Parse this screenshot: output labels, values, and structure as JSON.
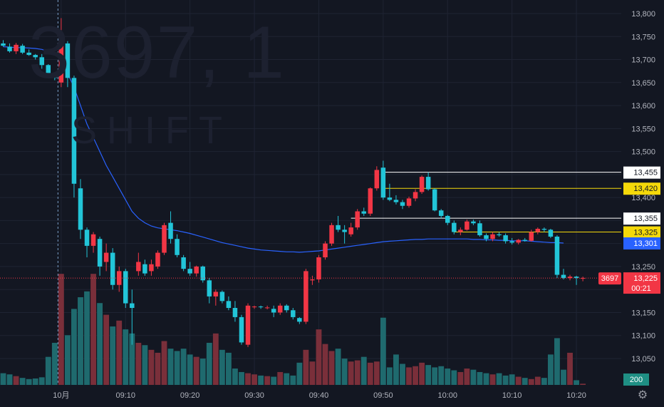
{
  "watermark": {
    "symbol": "3697, 1",
    "name": "SHIFT"
  },
  "colors": {
    "background": "#131722",
    "grid": "#1f2433",
    "up": "#f23645",
    "down": "#22c5d8",
    "vol_up": "#7a2f3a",
    "vol_down": "#1f6a6e",
    "ma": "#2962ff",
    "axis_text": "#b2b5be",
    "price_line": "#f23645"
  },
  "chart_data": {
    "type": "candlestick",
    "price_range": [
      13050,
      13800
    ],
    "y_ticks": [
      "13,800",
      "13,750",
      "13,700",
      "13,650",
      "13,600",
      "13,550",
      "13,500",
      "13,450",
      "13,400",
      "13,350",
      "13,300",
      "13,250",
      "13,200",
      "13,150",
      "13,100",
      "13,050"
    ],
    "y_tick_values": [
      13800,
      13750,
      13700,
      13650,
      13600,
      13550,
      13500,
      13450,
      13400,
      13350,
      13300,
      13250,
      13200,
      13150,
      13100,
      13050
    ],
    "x_ticks": [
      {
        "label": "10月",
        "bar": 9
      },
      {
        "label": "09:10",
        "bar": 19
      },
      {
        "label": "09:20",
        "bar": 29
      },
      {
        "label": "09:30",
        "bar": 39
      },
      {
        "label": "09:40",
        "bar": 49
      },
      {
        "label": "09:50",
        "bar": 59
      },
      {
        "label": "10:00",
        "bar": 69
      },
      {
        "label": "10:10",
        "bar": 79
      },
      {
        "label": "10:20",
        "bar": 89
      }
    ],
    "session_break_bar": 9,
    "candles": [
      [
        13735,
        13742,
        13728,
        13730
      ],
      [
        13728,
        13735,
        13715,
        13718
      ],
      [
        13718,
        13736,
        13712,
        13732
      ],
      [
        13730,
        13734,
        13712,
        13715
      ],
      [
        13715,
        13722,
        13708,
        13710
      ],
      [
        13710,
        13712,
        13700,
        13705
      ],
      [
        13705,
        13712,
        13680,
        13688
      ],
      [
        13688,
        13690,
        13660,
        13665
      ],
      [
        13665,
        13672,
        13655,
        13660
      ],
      [
        13650,
        13790,
        13640,
        13750
      ],
      [
        13735,
        13740,
        13640,
        13660
      ],
      [
        13660,
        13665,
        13400,
        13430
      ],
      [
        13420,
        13440,
        13310,
        13330
      ],
      [
        13330,
        13335,
        13270,
        13295
      ],
      [
        13295,
        13325,
        13280,
        13320
      ],
      [
        13310,
        13315,
        13230,
        13250
      ],
      [
        13260,
        13300,
        13240,
        13280
      ],
      [
        13280,
        13290,
        13200,
        13210
      ],
      [
        13210,
        13250,
        13195,
        13240
      ],
      [
        13240,
        13245,
        13160,
        13170
      ],
      [
        13170,
        13200,
        13080,
        13160
      ],
      [
        13240,
        13280,
        13230,
        13260
      ],
      [
        13255,
        13265,
        13230,
        13235
      ],
      [
        13240,
        13265,
        13230,
        13255
      ],
      [
        13250,
        13285,
        13245,
        13280
      ],
      [
        13280,
        13345,
        13275,
        13340
      ],
      [
        13345,
        13370,
        13300,
        13310
      ],
      [
        13310,
        13320,
        13270,
        13275
      ],
      [
        13270,
        13275,
        13240,
        13245
      ],
      [
        13245,
        13260,
        13230,
        13235
      ],
      [
        13235,
        13252,
        13228,
        13250
      ],
      [
        13250,
        13252,
        13215,
        13220
      ],
      [
        13220,
        13225,
        13170,
        13185
      ],
      [
        13185,
        13200,
        13165,
        13195
      ],
      [
        13195,
        13198,
        13170,
        13175
      ],
      [
        13175,
        13185,
        13155,
        13160
      ],
      [
        13160,
        13175,
        13130,
        13140
      ],
      [
        13140,
        13145,
        13080,
        13085
      ],
      [
        13080,
        13170,
        13075,
        13165
      ],
      [
        13162,
        13165,
        13158,
        13163
      ],
      [
        13163,
        13165,
        13158,
        13162
      ],
      [
        13160,
        13165,
        13157,
        13161
      ],
      [
        13158,
        13165,
        13140,
        13150
      ],
      [
        13150,
        13170,
        13145,
        13165
      ],
      [
        13165,
        13168,
        13150,
        13155
      ],
      [
        13155,
        13160,
        13135,
        13140
      ],
      [
        13138,
        13140,
        13125,
        13130
      ],
      [
        13130,
        13245,
        13125,
        13240
      ],
      [
        13220,
        13230,
        13210,
        13222
      ],
      [
        13222,
        13275,
        13215,
        13270
      ],
      [
        13270,
        13305,
        13265,
        13300
      ],
      [
        13300,
        13345,
        13295,
        13340
      ],
      [
        13340,
        13360,
        13325,
        13330
      ],
      [
        13330,
        13340,
        13300,
        13325
      ],
      [
        13320,
        13345,
        13315,
        13335
      ],
      [
        13335,
        13375,
        13330,
        13370
      ],
      [
        13370,
        13378,
        13360,
        13365
      ],
      [
        13365,
        13422,
        13360,
        13420
      ],
      [
        13420,
        13468,
        13415,
        13460
      ],
      [
        13465,
        13480,
        13395,
        13400
      ],
      [
        13400,
        13430,
        13392,
        13395
      ],
      [
        13395,
        13405,
        13385,
        13390
      ],
      [
        13390,
        13395,
        13375,
        13382
      ],
      [
        13382,
        13402,
        13378,
        13398
      ],
      [
        13398,
        13418,
        13392,
        13412
      ],
      [
        13412,
        13448,
        13408,
        13445
      ],
      [
        13445,
        13455,
        13415,
        13418
      ],
      [
        13418,
        13420,
        13370,
        13372
      ],
      [
        13372,
        13375,
        13355,
        13360
      ],
      [
        13360,
        13362,
        13340,
        13345
      ],
      [
        13345,
        13350,
        13320,
        13325
      ],
      [
        13325,
        13335,
        13318,
        13330
      ],
      [
        13330,
        13352,
        13328,
        13348
      ],
      [
        13348,
        13352,
        13340,
        13344
      ],
      [
        13344,
        13350,
        13315,
        13318
      ],
      [
        13318,
        13322,
        13305,
        13310
      ],
      [
        13310,
        13325,
        13305,
        13320
      ],
      [
        13320,
        13325,
        13315,
        13318
      ],
      [
        13318,
        13322,
        13300,
        13305
      ],
      [
        13305,
        13312,
        13298,
        13302
      ],
      [
        13302,
        13310,
        13298,
        13308
      ],
      [
        13308,
        13312,
        13304,
        13306
      ],
      [
        13306,
        13330,
        13304,
        13325
      ],
      [
        13325,
        13335,
        13320,
        13332
      ],
      [
        13332,
        13335,
        13325,
        13330
      ],
      [
        13330,
        13332,
        13312,
        13315
      ],
      [
        13315,
        13318,
        13225,
        13232
      ],
      [
        13232,
        13245,
        13222,
        13225
      ],
      [
        13225,
        13232,
        13220,
        13228
      ],
      [
        13228,
        13230,
        13210,
        13225
      ],
      [
        13225,
        13228,
        13218,
        13225
      ]
    ],
    "volumes": [
      20,
      18,
      15,
      12,
      10,
      11,
      13,
      48,
      72,
      190,
      85,
      130,
      150,
      160,
      190,
      140,
      120,
      100,
      110,
      95,
      88,
      72,
      68,
      60,
      55,
      75,
      62,
      58,
      62,
      52,
      48,
      45,
      72,
      88,
      60,
      55,
      28,
      22,
      20,
      18,
      16,
      15,
      14,
      22,
      20,
      16,
      38,
      60,
      40,
      95,
      70,
      58,
      62,
      45,
      40,
      42,
      48,
      38,
      40,
      115,
      30,
      52,
      36,
      30,
      32,
      38,
      34,
      30,
      32,
      28,
      25,
      22,
      28,
      26,
      22,
      20,
      18,
      20,
      16,
      18,
      14,
      12,
      10,
      14,
      12,
      52,
      80,
      26,
      55,
      8,
      2
    ],
    "moving_average": [
      13728,
      13727,
      13726,
      13726,
      13725,
      13724,
      13722,
      13718,
      13712,
      13700,
      13670,
      13640,
      13600,
      13560,
      13530,
      13500,
      13470,
      13445,
      13420,
      13395,
      13370,
      13355,
      13345,
      13338,
      13334,
      13332,
      13330,
      13328,
      13325,
      13322,
      13318,
      13314,
      13310,
      13306,
      13302,
      13299,
      13296,
      13293,
      13290,
      13288,
      13286,
      13285,
      13284,
      13283,
      13282,
      13282,
      13281,
      13282,
      13283,
      13284,
      13286,
      13288,
      13290,
      13292,
      13294,
      13296,
      13298,
      13300,
      13302,
      13304,
      13305,
      13306,
      13307,
      13308,
      13309,
      13309,
      13310,
      13310,
      13310,
      13310,
      13310,
      13310,
      13310,
      13309,
      13309,
      13308,
      13308,
      13307,
      13307,
      13306,
      13306,
      13306,
      13305,
      13304,
      13303,
      13302,
      13302,
      13301
    ],
    "horizontal_lines": [
      {
        "value": 13455,
        "color": "#ffffff",
        "label": "13,455",
        "start_bar": 59
      },
      {
        "value": 13420,
        "color": "#f5d90a",
        "label": "13,420",
        "start_bar": 59
      },
      {
        "value": 13355,
        "color": "#ffffff",
        "label": "13,355",
        "start_bar": 54
      },
      {
        "value": 13325,
        "color": "#f5d90a",
        "label": "13,325",
        "start_bar": 70
      }
    ],
    "price_labels": [
      {
        "value": 13301,
        "label": "13,301",
        "bg": "#2962ff",
        "fg": "#ffffff"
      },
      {
        "value": 13225,
        "label": "13,225",
        "sublabel": "00:21",
        "bg": "#f23645",
        "fg": "#ffffff"
      }
    ],
    "current_price": {
      "value": 13225,
      "symbol_tag": "3697"
    },
    "volume_tag": "200"
  }
}
